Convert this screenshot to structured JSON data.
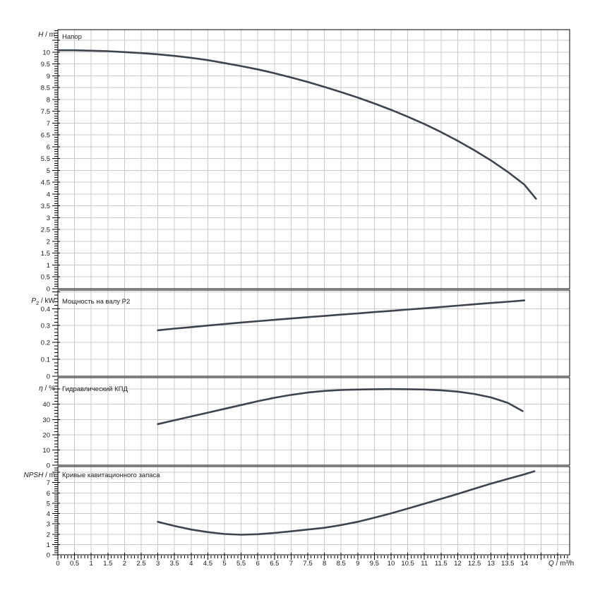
{
  "chart_data": {
    "type": "line",
    "title": "",
    "background": "#ffffff",
    "colors": {
      "curve": "#3d444e",
      "grid": "#c9c9c9",
      "frame": "#000000",
      "text": "#1a1a1a"
    },
    "legend_position": "none",
    "grid": true,
    "x_axis": {
      "symbol": "Q",
      "sep": " / ",
      "unit": "m³/h",
      "min": 0,
      "max": 15.36,
      "major_step": 0.5,
      "minor_step": 0.1,
      "tick_labels": [
        0,
        0.5,
        1,
        1.5,
        2,
        2.5,
        3,
        3.5,
        4,
        4.5,
        5,
        5.5,
        6,
        6.5,
        7,
        7.5,
        8,
        8.5,
        9,
        9.5,
        10,
        10.5,
        11,
        11.5,
        12,
        12.5,
        13,
        13.5,
        14
      ]
    },
    "panels": [
      {
        "id": "head",
        "title": "Напор",
        "y_axis": {
          "symbol": "H",
          "sub": "",
          "sep": " / ",
          "unit": "m",
          "min": 0,
          "max": 10.95,
          "major_step": 0.5,
          "minor_step": 0.1,
          "tick_labels": [
            0,
            0.5,
            1,
            1.5,
            2,
            2.5,
            3,
            3.5,
            4,
            4.5,
            5,
            5.5,
            6,
            6.5,
            7,
            7.5,
            8,
            8.5,
            9,
            9.5,
            10
          ]
        },
        "series": [
          {
            "name": "H(Q)",
            "points": [
              [
                0,
                10.08
              ],
              [
                0.5,
                10.08
              ],
              [
                1,
                10.06
              ],
              [
                1.5,
                10.04
              ],
              [
                2,
                10.0
              ],
              [
                2.5,
                9.96
              ],
              [
                3,
                9.91
              ],
              [
                3.5,
                9.84
              ],
              [
                4,
                9.76
              ],
              [
                4.5,
                9.66
              ],
              [
                5,
                9.54
              ],
              [
                5.5,
                9.41
              ],
              [
                6,
                9.27
              ],
              [
                6.5,
                9.11
              ],
              [
                7,
                8.93
              ],
              [
                7.5,
                8.74
              ],
              [
                8,
                8.53
              ],
              [
                8.5,
                8.31
              ],
              [
                9,
                8.08
              ],
              [
                9.5,
                7.83
              ],
              [
                10,
                7.56
              ],
              [
                10.5,
                7.27
              ],
              [
                11,
                6.96
              ],
              [
                11.5,
                6.62
              ],
              [
                12,
                6.25
              ],
              [
                12.5,
                5.85
              ],
              [
                13,
                5.42
              ],
              [
                13.5,
                4.94
              ],
              [
                14,
                4.4
              ],
              [
                14.35,
                3.8
              ]
            ]
          }
        ]
      },
      {
        "id": "power",
        "title": "Мощность на валу P2",
        "y_axis": {
          "symbol": "P",
          "sub": "2",
          "sep": " / ",
          "unit": "kW",
          "min": 0,
          "max": 0.51,
          "major_step": 0.1,
          "minor_step": 0.02,
          "tick_labels": [
            0,
            0.1,
            0.2,
            0.3,
            0.4
          ]
        },
        "series": [
          {
            "name": "P2(Q)",
            "points": [
              [
                3,
                0.272
              ],
              [
                3.5,
                0.282
              ],
              [
                4,
                0.291
              ],
              [
                4.5,
                0.3
              ],
              [
                5,
                0.309
              ],
              [
                5.5,
                0.318
              ],
              [
                6,
                0.326
              ],
              [
                6.5,
                0.334
              ],
              [
                7,
                0.342
              ],
              [
                7.5,
                0.35
              ],
              [
                8,
                0.357
              ],
              [
                8.5,
                0.365
              ],
              [
                9,
                0.372
              ],
              [
                9.5,
                0.38
              ],
              [
                10,
                0.387
              ],
              [
                10.5,
                0.395
              ],
              [
                11,
                0.402
              ],
              [
                11.5,
                0.41
              ],
              [
                12,
                0.418
              ],
              [
                12.5,
                0.426
              ],
              [
                13,
                0.434
              ],
              [
                13.5,
                0.441
              ],
              [
                14,
                0.449
              ]
            ]
          }
        ]
      },
      {
        "id": "efficiency",
        "title": "Гидравлический КПД",
        "y_axis": {
          "symbol": "η",
          "sub": "",
          "sep": " / ",
          "unit": "%",
          "min": 0,
          "max": 57.5,
          "major_step": 10,
          "minor_step": 2,
          "tick_labels": [
            0,
            10,
            20,
            30,
            40
          ]
        },
        "series": [
          {
            "name": "eta(Q)",
            "points": [
              [
                3,
                27
              ],
              [
                3.5,
                29.5
              ],
              [
                4,
                32
              ],
              [
                4.5,
                34.5
              ],
              [
                5,
                37
              ],
              [
                5.5,
                39.5
              ],
              [
                6,
                42
              ],
              [
                6.5,
                44.3
              ],
              [
                7,
                46.2
              ],
              [
                7.5,
                47.7
              ],
              [
                8,
                48.8
              ],
              [
                8.5,
                49.4
              ],
              [
                9,
                49.7
              ],
              [
                9.5,
                49.9
              ],
              [
                10,
                50
              ],
              [
                10.5,
                49.9
              ],
              [
                11,
                49.7
              ],
              [
                11.5,
                49.2
              ],
              [
                12,
                48.3
              ],
              [
                12.5,
                46.8
              ],
              [
                13,
                44.5
              ],
              [
                13.5,
                41
              ],
              [
                13.95,
                35.5
              ]
            ]
          }
        ]
      },
      {
        "id": "npsh",
        "title": "Кривые кавитационного запаса",
        "y_axis": {
          "symbol": "NPSH",
          "sub": "",
          "sep": " / ",
          "unit": "m",
          "min": 0,
          "max": 8.55,
          "major_step": 1,
          "minor_step": 0.2,
          "tick_labels": [
            0,
            1,
            2,
            3,
            4,
            5,
            6,
            7
          ]
        },
        "series": [
          {
            "name": "NPSH(Q)",
            "points": [
              [
                3,
                3.2
              ],
              [
                3.5,
                2.8
              ],
              [
                4,
                2.45
              ],
              [
                4.5,
                2.2
              ],
              [
                5,
                2.02
              ],
              [
                5.5,
                1.95
              ],
              [
                6,
                2.0
              ],
              [
                6.5,
                2.12
              ],
              [
                7,
                2.28
              ],
              [
                7.5,
                2.45
              ],
              [
                8,
                2.62
              ],
              [
                8.5,
                2.88
              ],
              [
                9,
                3.2
              ],
              [
                9.5,
                3.6
              ],
              [
                10,
                4.02
              ],
              [
                10.5,
                4.48
              ],
              [
                11,
                4.95
              ],
              [
                11.5,
                5.42
              ],
              [
                12,
                5.9
              ],
              [
                12.5,
                6.4
              ],
              [
                13,
                6.9
              ],
              [
                13.5,
                7.35
              ],
              [
                14,
                7.8
              ],
              [
                14.3,
                8.1
              ]
            ]
          }
        ]
      }
    ]
  }
}
